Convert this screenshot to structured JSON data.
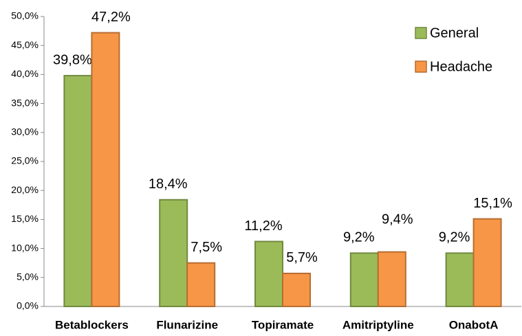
{
  "chart_data": {
    "type": "bar",
    "categories": [
      "Betablockers",
      "Flunarizine",
      "Topiramate",
      "Amitriptyline",
      "OnabotA"
    ],
    "series": [
      {
        "name": "General",
        "color": "#9bbb59",
        "values": [
          39.8,
          18.4,
          11.2,
          9.2,
          9.2
        ],
        "value_labels": [
          "39,8%",
          "18,4%",
          "11,2%",
          "9,2%",
          "9,2%"
        ]
      },
      {
        "name": "Headache",
        "color": "#f79646",
        "values": [
          47.2,
          7.5,
          5.7,
          9.4,
          15.1
        ],
        "value_labels": [
          "47,2%",
          "7,5%",
          "5,7%",
          "9,4%",
          "15,1%"
        ]
      }
    ],
    "ylim": [
      0,
      50
    ],
    "yticks": [
      {
        "value": 0,
        "label": "0,0%"
      },
      {
        "value": 5,
        "label": "5,0%"
      },
      {
        "value": 10,
        "label": "10,0%"
      },
      {
        "value": 15,
        "label": "15,0%"
      },
      {
        "value": 20,
        "label": "20,0%"
      },
      {
        "value": 25,
        "label": "25,0%"
      },
      {
        "value": 30,
        "label": "30,0%"
      },
      {
        "value": 35,
        "label": "35,0%"
      },
      {
        "value": 40,
        "label": "40,0%"
      },
      {
        "value": 45,
        "label": "45,0%"
      },
      {
        "value": 50,
        "label": "50,0%"
      }
    ],
    "legend": "top-right",
    "grid": false
  }
}
